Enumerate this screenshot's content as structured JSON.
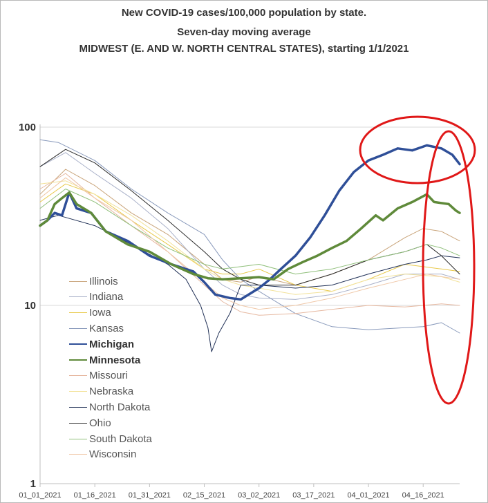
{
  "chart_data": {
    "type": "line",
    "title": "New COVID-19 cases/100,000 population by state.",
    "subtitle": "Seven-day moving average",
    "subtitle2": "MIDWEST (E. AND W. NORTH CENTRAL STATES), starting 1/1/2021",
    "xlabel": "",
    "ylabel": "",
    "y_scale": "log",
    "ylim": [
      1,
      100
    ],
    "y_ticks": [
      "1",
      "10",
      "100"
    ],
    "x_tick_labels": [
      "01_01_2021",
      "01_16_2021",
      "01_31_2021",
      "02_15_2021",
      "03_02_2021",
      "03_17_2021",
      "04_01_2021",
      "04_16_2021"
    ],
    "x_tick_days": [
      0,
      15,
      30,
      45,
      60,
      75,
      90,
      105
    ],
    "legend_placement": "left-inside",
    "annotations": "red ellipse circling top of Michigan curve; red vertical ellipse circling final values of all states",
    "series": [
      {
        "name": "Illinois",
        "color": "#c9a47a",
        "width": 1,
        "points": [
          [
            0,
            42
          ],
          [
            7,
            58
          ],
          [
            15,
            47
          ],
          [
            25,
            33
          ],
          [
            35,
            25
          ],
          [
            45,
            17
          ],
          [
            50,
            14
          ],
          [
            55,
            13.5
          ],
          [
            60,
            14.5
          ],
          [
            70,
            13
          ],
          [
            80,
            15
          ],
          [
            90,
            18
          ],
          [
            100,
            24
          ],
          [
            105,
            27
          ],
          [
            110,
            26
          ],
          [
            115,
            23
          ]
        ]
      },
      {
        "name": "Indiana",
        "color": "#a9b1c9",
        "width": 1,
        "points": [
          [
            0,
            60
          ],
          [
            7,
            72
          ],
          [
            15,
            55
          ],
          [
            25,
            40
          ],
          [
            35,
            27
          ],
          [
            45,
            16
          ],
          [
            50,
            13
          ],
          [
            55,
            11.5
          ],
          [
            60,
            11
          ],
          [
            70,
            10.8
          ],
          [
            80,
            11.5
          ],
          [
            90,
            13
          ],
          [
            100,
            15
          ],
          [
            110,
            15
          ],
          [
            115,
            14
          ]
        ]
      },
      {
        "name": "Iowa",
        "color": "#e8c94a",
        "width": 1,
        "points": [
          [
            0,
            38
          ],
          [
            7,
            48
          ],
          [
            15,
            42
          ],
          [
            25,
            30
          ],
          [
            35,
            22
          ],
          [
            45,
            16
          ],
          [
            50,
            15
          ],
          [
            55,
            15
          ],
          [
            60,
            16
          ],
          [
            70,
            13
          ],
          [
            80,
            12
          ],
          [
            90,
            14
          ],
          [
            100,
            17
          ],
          [
            110,
            16
          ],
          [
            115,
            15.5
          ]
        ]
      },
      {
        "name": "Kansas",
        "color": "#8899bb",
        "width": 1,
        "points": [
          [
            0,
            85
          ],
          [
            5,
            82
          ],
          [
            15,
            65
          ],
          [
            25,
            45
          ],
          [
            35,
            33
          ],
          [
            45,
            25
          ],
          [
            50,
            18
          ],
          [
            55,
            14
          ],
          [
            60,
            12
          ],
          [
            70,
            9
          ],
          [
            80,
            7.6
          ],
          [
            90,
            7.3
          ],
          [
            100,
            7.5
          ],
          [
            105,
            7.6
          ],
          [
            110,
            8
          ],
          [
            115,
            7
          ]
        ]
      },
      {
        "name": "Michigan",
        "color": "#2f4f98",
        "width": 3.5,
        "points": [
          [
            0,
            28
          ],
          [
            2,
            30
          ],
          [
            4,
            33
          ],
          [
            6,
            32
          ],
          [
            8,
            43
          ],
          [
            10,
            35
          ],
          [
            14,
            33
          ],
          [
            18,
            26
          ],
          [
            24,
            23
          ],
          [
            30,
            19
          ],
          [
            36,
            17
          ],
          [
            42,
            15.5
          ],
          [
            45,
            13.5
          ],
          [
            48,
            11.5
          ],
          [
            52,
            11
          ],
          [
            55,
            10.8
          ],
          [
            60,
            12.5
          ],
          [
            63,
            14
          ],
          [
            66,
            16
          ],
          [
            70,
            19
          ],
          [
            74,
            24
          ],
          [
            78,
            32
          ],
          [
            82,
            44
          ],
          [
            86,
            56
          ],
          [
            90,
            65
          ],
          [
            94,
            70
          ],
          [
            98,
            76
          ],
          [
            102,
            74
          ],
          [
            106,
            79
          ],
          [
            110,
            76
          ],
          [
            113,
            70
          ],
          [
            115,
            62
          ]
        ]
      },
      {
        "name": "Minnesota",
        "color": "#5f8a3a",
        "width": 3.5,
        "points": [
          [
            0,
            28
          ],
          [
            2,
            30
          ],
          [
            4,
            37
          ],
          [
            6,
            40
          ],
          [
            8,
            43
          ],
          [
            10,
            37
          ],
          [
            14,
            33
          ],
          [
            18,
            26
          ],
          [
            24,
            22
          ],
          [
            30,
            20
          ],
          [
            36,
            17
          ],
          [
            42,
            15
          ],
          [
            46,
            14.2
          ],
          [
            50,
            14
          ],
          [
            55,
            14.2
          ],
          [
            60,
            14.4
          ],
          [
            64,
            14
          ],
          [
            68,
            16
          ],
          [
            72,
            17.5
          ],
          [
            76,
            19
          ],
          [
            80,
            21
          ],
          [
            84,
            23
          ],
          [
            88,
            27
          ],
          [
            92,
            32
          ],
          [
            94,
            30
          ],
          [
            98,
            35
          ],
          [
            102,
            38
          ],
          [
            106,
            42
          ],
          [
            108,
            38
          ],
          [
            112,
            37
          ],
          [
            114,
            34
          ],
          [
            115,
            33
          ]
        ]
      },
      {
        "name": "Missouri",
        "color": "#e6b8a0",
        "width": 1,
        "points": [
          [
            0,
            45
          ],
          [
            7,
            55
          ],
          [
            15,
            40
          ],
          [
            25,
            28
          ],
          [
            35,
            20
          ],
          [
            45,
            13
          ],
          [
            50,
            10.5
          ],
          [
            55,
            9.2
          ],
          [
            60,
            8.8
          ],
          [
            70,
            9
          ],
          [
            80,
            9.5
          ],
          [
            90,
            10
          ],
          [
            100,
            9.8
          ],
          [
            110,
            10.2
          ],
          [
            115,
            10
          ]
        ]
      },
      {
        "name": "Nebraska",
        "color": "#f2e29a",
        "width": 1,
        "points": [
          [
            0,
            48
          ],
          [
            7,
            50
          ],
          [
            15,
            42
          ],
          [
            25,
            32
          ],
          [
            35,
            23
          ],
          [
            45,
            16
          ],
          [
            50,
            14
          ],
          [
            55,
            13
          ],
          [
            60,
            12.5
          ],
          [
            70,
            11.5
          ],
          [
            80,
            12
          ],
          [
            90,
            14
          ],
          [
            100,
            15
          ],
          [
            110,
            14.5
          ],
          [
            115,
            13.5
          ]
        ]
      },
      {
        "name": "North Dakota",
        "color": "#1f2f55",
        "width": 1,
        "points": [
          [
            0,
            30
          ],
          [
            5,
            32
          ],
          [
            15,
            28
          ],
          [
            25,
            22
          ],
          [
            35,
            17
          ],
          [
            40,
            14
          ],
          [
            44,
            10
          ],
          [
            46,
            7.5
          ],
          [
            47,
            5.5
          ],
          [
            49,
            7
          ],
          [
            52,
            9
          ],
          [
            55,
            13
          ],
          [
            60,
            13
          ],
          [
            70,
            12.5
          ],
          [
            80,
            13
          ],
          [
            90,
            15
          ],
          [
            100,
            17
          ],
          [
            106,
            18
          ],
          [
            110,
            19
          ],
          [
            115,
            18.5
          ]
        ]
      },
      {
        "name": "Ohio",
        "color": "#2a2a2a",
        "width": 1,
        "points": [
          [
            0,
            60
          ],
          [
            7,
            75
          ],
          [
            15,
            63
          ],
          [
            25,
            44
          ],
          [
            35,
            30
          ],
          [
            45,
            20
          ],
          [
            50,
            16
          ],
          [
            55,
            14
          ],
          [
            60,
            13
          ],
          [
            70,
            13
          ],
          [
            80,
            15
          ],
          [
            90,
            18
          ],
          [
            100,
            20
          ],
          [
            106,
            22
          ],
          [
            110,
            19
          ],
          [
            115,
            15
          ]
        ]
      },
      {
        "name": "South Dakota",
        "color": "#8fbf7a",
        "width": 1,
        "points": [
          [
            0,
            35
          ],
          [
            7,
            45
          ],
          [
            15,
            38
          ],
          [
            25,
            28
          ],
          [
            35,
            21
          ],
          [
            45,
            17
          ],
          [
            50,
            16
          ],
          [
            55,
            16.5
          ],
          [
            60,
            17
          ],
          [
            70,
            15
          ],
          [
            80,
            16
          ],
          [
            90,
            18
          ],
          [
            100,
            20
          ],
          [
            106,
            22
          ],
          [
            110,
            21
          ],
          [
            115,
            19
          ]
        ]
      },
      {
        "name": "Wisconsin",
        "color": "#f0c8a8",
        "width": 1,
        "points": [
          [
            0,
            40
          ],
          [
            7,
            52
          ],
          [
            15,
            40
          ],
          [
            25,
            30
          ],
          [
            35,
            20
          ],
          [
            45,
            13.5
          ],
          [
            50,
            11
          ],
          [
            55,
            10
          ],
          [
            60,
            9.5
          ],
          [
            70,
            10
          ],
          [
            80,
            11
          ],
          [
            90,
            12.5
          ],
          [
            100,
            14
          ],
          [
            106,
            15
          ],
          [
            110,
            14.5
          ],
          [
            115,
            14
          ]
        ]
      }
    ]
  }
}
